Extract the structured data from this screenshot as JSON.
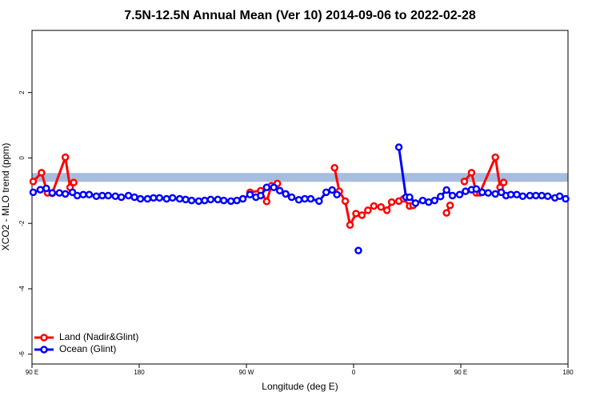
{
  "chart_data": {
    "type": "line",
    "title": "7.5N-12.5N Annual Mean (Ver 10)   2014-09-06 to 2022-02-28",
    "x_label": "Longitude (deg E)",
    "y_label": "XCO2 - MLO trend (ppm)",
    "xlim": [
      90,
      540
    ],
    "ylim": [
      -6.3,
      3.9
    ],
    "xticks": [
      {
        "value": 90,
        "label": "90 E"
      },
      {
        "value": 180,
        "label": "180"
      },
      {
        "value": 270,
        "label": "90 W"
      },
      {
        "value": 360,
        "label": "0"
      },
      {
        "value": 450,
        "label": "90 E"
      },
      {
        "value": 540,
        "label": "180"
      }
    ],
    "yticks": [
      -6,
      -4,
      -2,
      0,
      2
    ],
    "band": [
      -0.73,
      -0.46
    ],
    "band_color": "#a7bddf",
    "legend": "bottom-left",
    "series": [
      {
        "name": "Land (Nadir&Glint)",
        "color": "#ff0000",
        "x": [
          91,
          98,
          103,
          107,
          118,
          122,
          125,
          200,
          273,
          282,
          287,
          291,
          296,
          320,
          344,
          348,
          353,
          357,
          362,
          367,
          372,
          377,
          383,
          388,
          392,
          398,
          402,
          407,
          410,
          425,
          438,
          441,
          447,
          453,
          459,
          463,
          466,
          479,
          483,
          486
        ],
        "values": [
          -0.72,
          -0.45,
          -1.07,
          -1.08,
          0.02,
          -0.9,
          -0.75,
          null,
          -1.05,
          -1.0,
          -1.33,
          -0.85,
          -0.78,
          null,
          -0.3,
          -1.02,
          -1.32,
          -2.05,
          -1.7,
          -1.75,
          -1.6,
          -1.47,
          -1.5,
          -1.6,
          -1.35,
          -1.32,
          -1.25,
          -1.47,
          -1.45,
          null,
          -1.68,
          -1.45,
          null,
          -0.72,
          -0.45,
          -1.07,
          -1.07,
          0.02,
          -0.9,
          -0.75
        ]
      },
      {
        "name": "Ocean (Glint)",
        "color": "#0000ff",
        "x": [
          91,
          97,
          102,
          107,
          113,
          118,
          124,
          128,
          133,
          138,
          144,
          149,
          154,
          160,
          165,
          171,
          176,
          181,
          187,
          192,
          197,
          203,
          208,
          214,
          219,
          224,
          230,
          235,
          240,
          246,
          251,
          257,
          262,
          267,
          273,
          278,
          282,
          287,
          293,
          298,
          303,
          308,
          314,
          319,
          324,
          331,
          337,
          342,
          346,
          355,
          364,
          380,
          398,
          404,
          407,
          412,
          418,
          423,
          428,
          433,
          438,
          443,
          449,
          454,
          459,
          463,
          468,
          473,
          479,
          484,
          488,
          492,
          497,
          502,
          508,
          513,
          518,
          523,
          529,
          533,
          538
        ],
        "values": [
          -1.05,
          -0.97,
          -0.93,
          -1.07,
          -1.07,
          -1.1,
          -1.05,
          -1.15,
          -1.12,
          -1.12,
          -1.17,
          -1.15,
          -1.15,
          -1.17,
          -1.2,
          -1.15,
          -1.2,
          -1.25,
          -1.25,
          -1.22,
          -1.22,
          -1.25,
          -1.22,
          -1.25,
          -1.27,
          -1.3,
          -1.32,
          -1.3,
          -1.27,
          -1.27,
          -1.3,
          -1.32,
          -1.3,
          -1.25,
          -1.12,
          -1.2,
          -1.15,
          -0.9,
          -0.9,
          -1.0,
          -1.1,
          -1.2,
          -1.28,
          -1.25,
          -1.25,
          -1.32,
          -1.05,
          -0.98,
          -1.12,
          null,
          -2.83,
          null,
          0.33,
          -1.2,
          -1.2,
          -1.38,
          -1.3,
          -1.35,
          -1.3,
          -1.18,
          -0.98,
          -1.15,
          -1.12,
          -1.02,
          -0.97,
          -0.95,
          -1.05,
          -1.07,
          -1.1,
          -1.05,
          -1.15,
          -1.12,
          -1.12,
          -1.17,
          -1.15,
          -1.15,
          -1.15,
          -1.17,
          -1.22,
          -1.17,
          -1.25
        ]
      }
    ]
  }
}
